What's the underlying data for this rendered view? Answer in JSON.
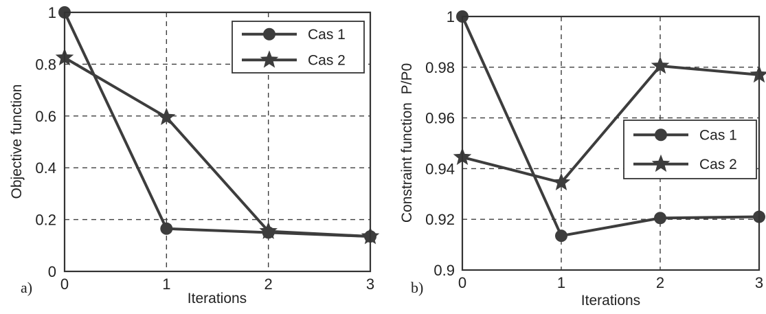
{
  "chart_data": [
    {
      "type": "line",
      "panel_label": "a)",
      "xlabel": "Iterations",
      "ylabel": "Objective function",
      "x": [
        0,
        1,
        2,
        3
      ],
      "xlim": [
        0,
        3
      ],
      "ylim": [
        0,
        1
      ],
      "x_ticks": [
        "0",
        "1",
        "2",
        "3"
      ],
      "y_ticks": [
        "0",
        "0.2",
        "0.4",
        "0.6",
        "0.8",
        "1"
      ],
      "grid": true,
      "legend_position": "top-right",
      "series": [
        {
          "name": "Cas 1",
          "marker": "circle",
          "values": [
            1.0,
            0.165,
            0.15,
            0.135
          ]
        },
        {
          "name": "Cas 2",
          "marker": "star",
          "values": [
            0.825,
            0.595,
            0.155,
            0.135
          ]
        }
      ]
    },
    {
      "type": "line",
      "panel_label": "b)",
      "xlabel": "Iterations",
      "ylabel": "Constraint function  P/P0",
      "x": [
        0,
        1,
        2,
        3
      ],
      "xlim": [
        0,
        3
      ],
      "ylim": [
        0.9,
        1
      ],
      "x_ticks": [
        "0",
        "1",
        "2",
        "3"
      ],
      "y_ticks": [
        "0.9",
        "0.92",
        "0.94",
        "0.96",
        "0.98",
        "1"
      ],
      "grid": true,
      "legend_position": "center-right",
      "series": [
        {
          "name": "Cas 1",
          "marker": "circle",
          "values": [
            1.0,
            0.9135,
            0.9205,
            0.921
          ]
        },
        {
          "name": "Cas 2",
          "marker": "star",
          "values": [
            0.9445,
            0.9345,
            0.9805,
            0.977
          ]
        }
      ]
    }
  ],
  "colors": {
    "series_line": "#3d3d3d",
    "grid": "#3c3c3c",
    "frame": "#333333",
    "text": "#222222"
  }
}
